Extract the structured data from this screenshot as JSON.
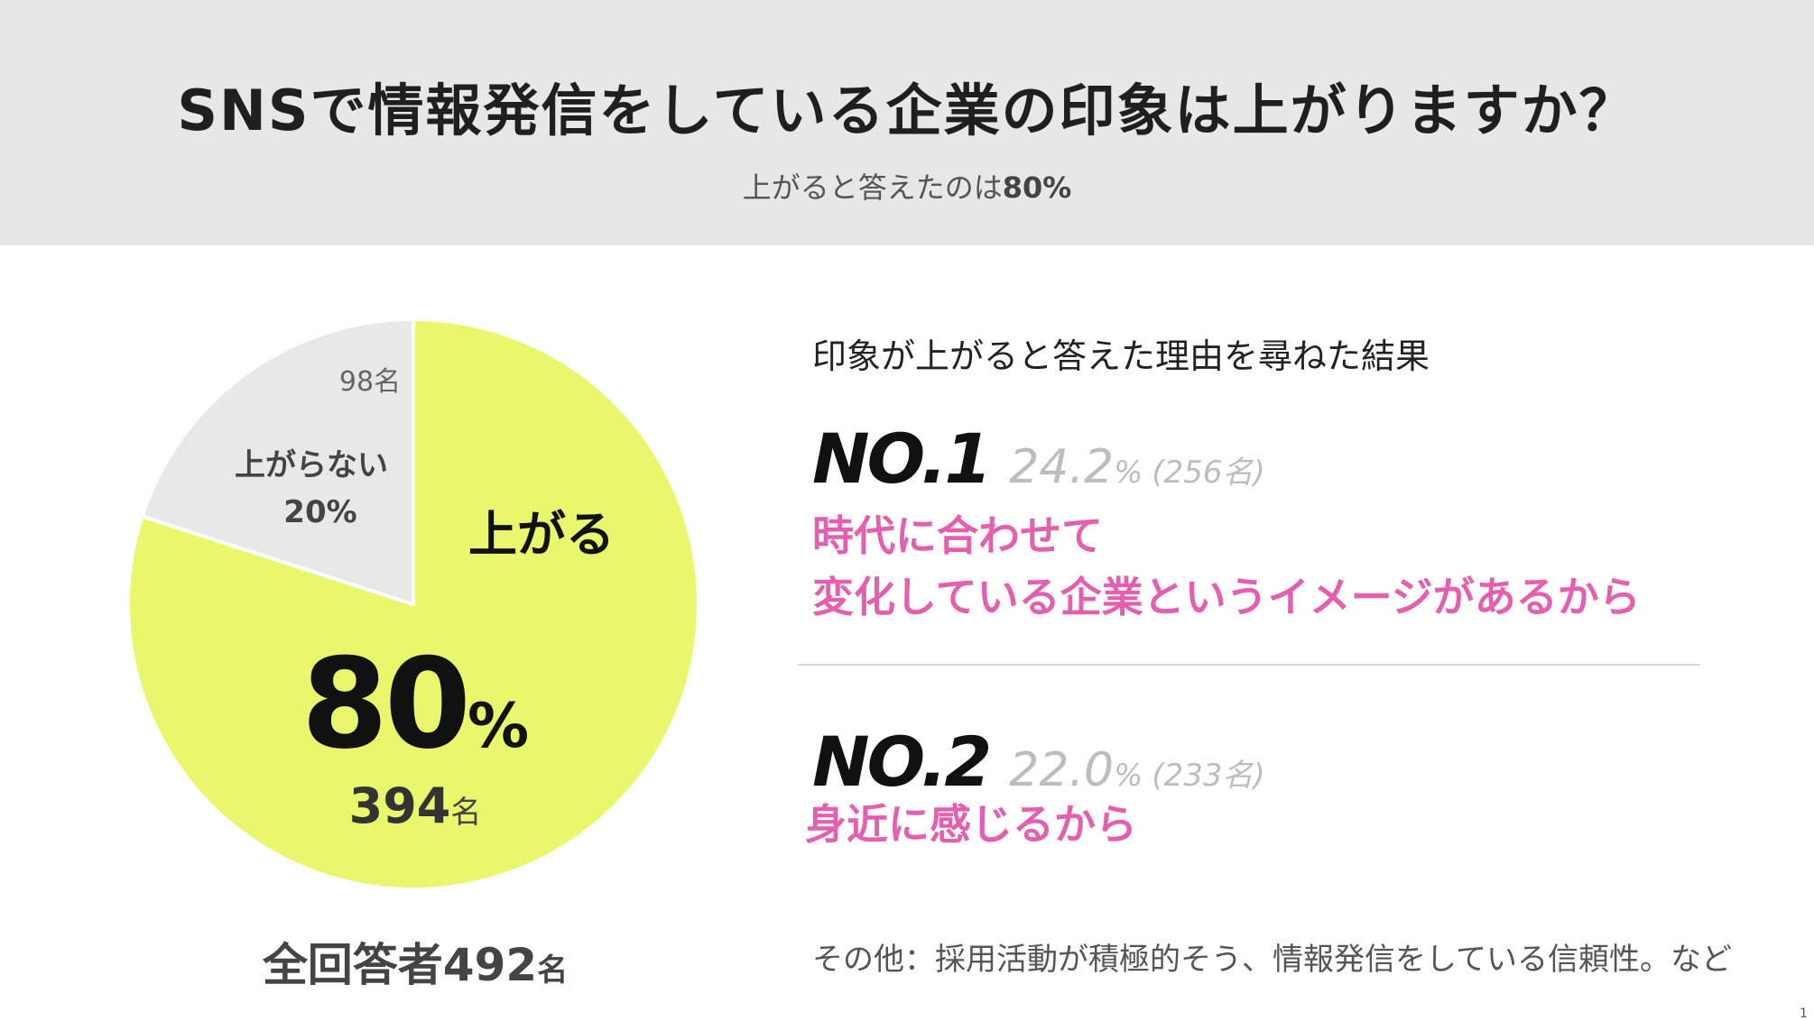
{
  "header": {
    "title": "SNSで情報発信をしている企業の印象は上がりますか？",
    "subtitle_text": "上がると答えたのは",
    "subtitle_value": "80%"
  },
  "chart_data": {
    "type": "pie",
    "slices": [
      {
        "label": "上がる",
        "percent": 80,
        "count": 394,
        "color": "#e8f76b"
      },
      {
        "label": "上がらない",
        "percent": 20,
        "count": 98,
        "color": "#e8e8e8"
      }
    ],
    "total": 492
  },
  "pie_labels": {
    "up_label": "上がる",
    "up_percent": "80",
    "percent_unit": "%",
    "up_count": "394",
    "count_unit": "名",
    "notup_count": "98名",
    "notup_label": "上がらない",
    "notup_percent": "20%"
  },
  "total": {
    "text": "全回答者492",
    "unit": "名"
  },
  "reasons": {
    "heading": "印象が上がると答えた理由を尋ねた結果",
    "items": [
      {
        "rank": "NO.1",
        "percent": "24.2",
        "percent_unit": "%",
        "count": "(256名)",
        "lines": [
          "時代に合わせて",
          "変化している企業というイメージがあるから"
        ]
      },
      {
        "rank": "NO.2",
        "percent": "22.0",
        "percent_unit": "%",
        "count": "(233名)",
        "lines": [
          "身近に感じるから"
        ]
      }
    ],
    "other": "その他：採用活動が積極的そう、情報発信をしている信頼性。など"
  },
  "page_number": "1"
}
